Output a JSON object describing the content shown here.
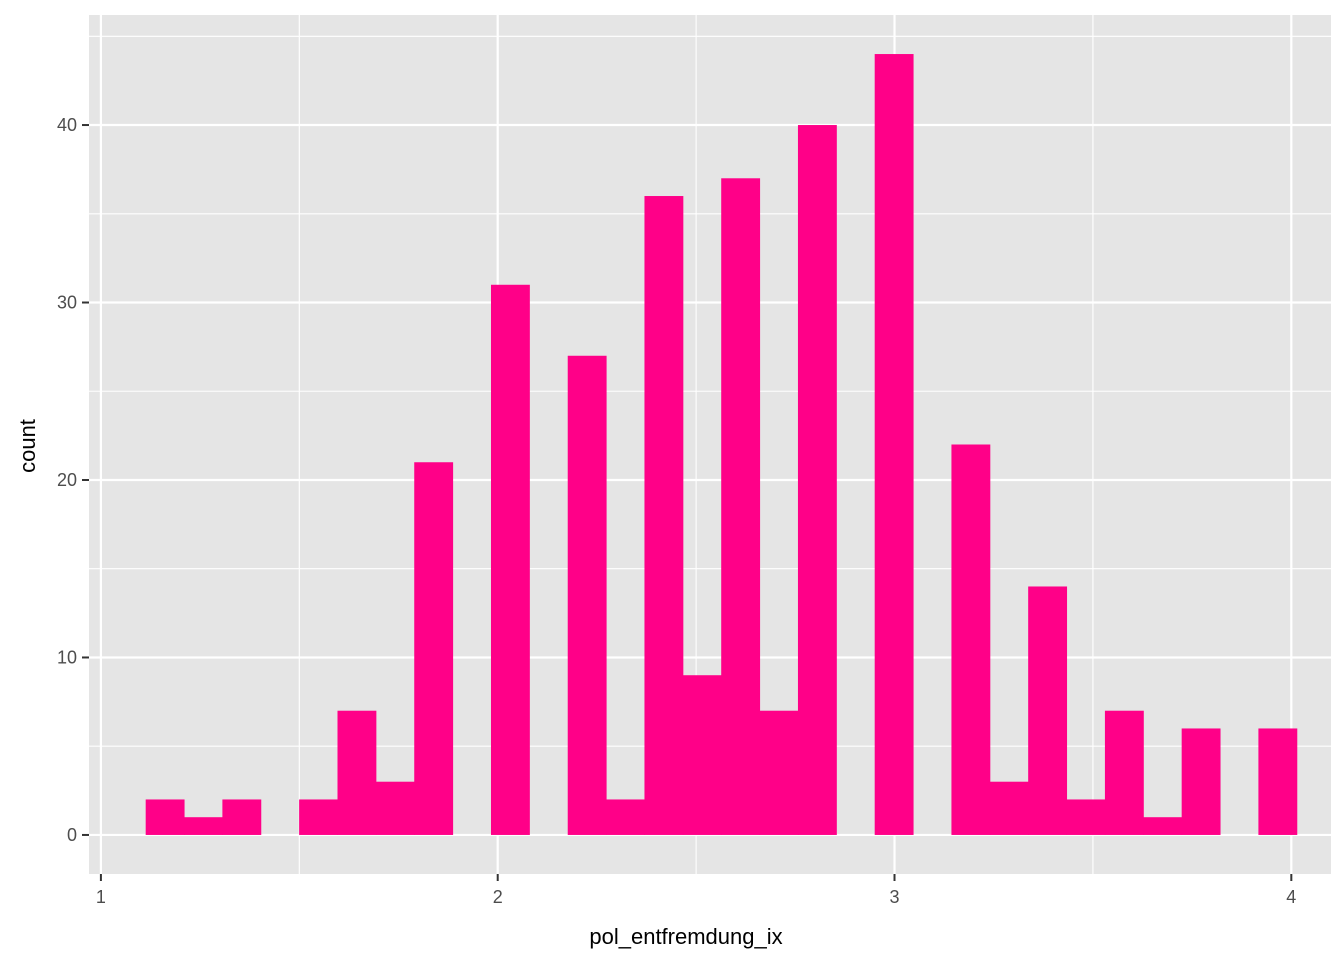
{
  "chart_data": {
    "type": "bar",
    "title": "",
    "xlabel": "pol_entfremdung_ix",
    "ylabel": "count",
    "xlim": [
      0.97,
      4.1
    ],
    "ylim": [
      -2.2,
      46.2
    ],
    "x_ticks": [
      1,
      2,
      3,
      4
    ],
    "x_tick_labels": [
      "1",
      "2",
      "3",
      "4"
    ],
    "x_minor_gridlines": [
      1.5,
      2.5,
      3.5
    ],
    "y_ticks": [
      0,
      10,
      20,
      30,
      40
    ],
    "y_tick_labels": [
      "0",
      "10",
      "20",
      "30",
      "40"
    ],
    "y_minor_gridlines": [
      5,
      15,
      25,
      35,
      45
    ],
    "grid": true,
    "bin_width": 0.0967,
    "bin_centers": [
      1.1612,
      1.2579,
      1.3545,
      1.4512,
      1.5479,
      1.6446,
      1.7413,
      1.838,
      1.9347,
      2.0314,
      2.1281,
      2.2248,
      2.3215,
      2.4182,
      2.5149,
      2.6116,
      2.7083,
      2.805,
      2.9017,
      2.9984,
      3.0951,
      3.1918,
      3.2885,
      3.3852,
      3.4819,
      3.5786,
      3.6753,
      3.772,
      3.8687,
      3.9654
    ],
    "values": [
      2,
      1,
      2,
      0,
      2,
      7,
      3,
      21,
      0,
      31,
      0,
      27,
      2,
      36,
      9,
      37,
      7,
      40,
      0,
      44,
      0,
      22,
      3,
      14,
      2,
      7,
      1,
      6,
      0,
      6
    ],
    "bar_color": "#FF0088",
    "panel_background": "#E5E5E5",
    "grid_color": "#FFFFFF"
  }
}
